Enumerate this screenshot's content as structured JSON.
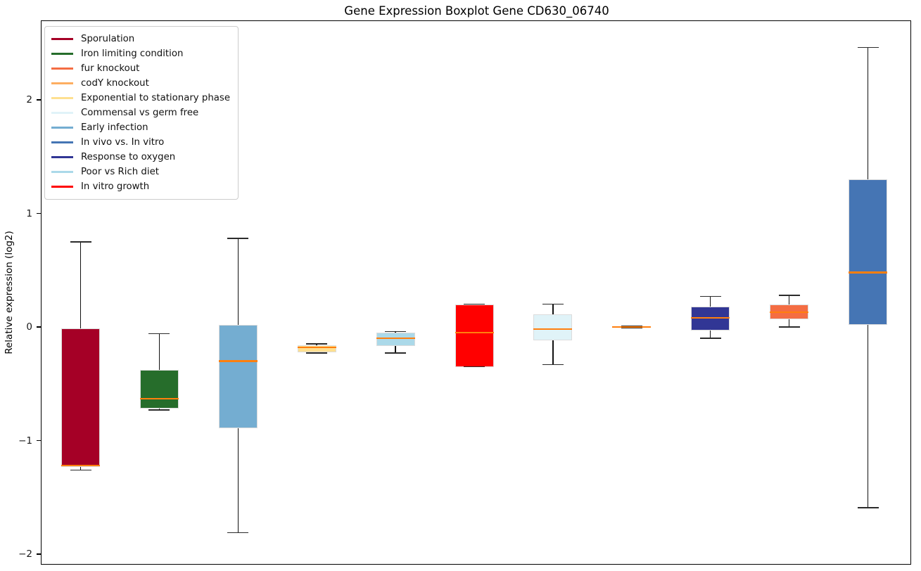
{
  "figure": {
    "title": "Gene Expression Boxplot Gene CD630_06740",
    "ylabel": "Relative expression (log2)"
  },
  "axes": {
    "yticks": [
      {
        "value": 2,
        "label": "2"
      },
      {
        "value": 1,
        "label": "1"
      },
      {
        "value": 0,
        "label": "0"
      },
      {
        "value": -1,
        "label": "−1"
      },
      {
        "value": -2,
        "label": "−2"
      }
    ]
  },
  "colors": {
    "median_line": "#ff7f0e",
    "box_edge": "#dcdcdc",
    "whisker": "#111111",
    "spine": "#000000"
  },
  "legend": {
    "items": [
      {
        "label": "Sporulation",
        "color": "#a50026"
      },
      {
        "label": "Iron limiting condition",
        "color": "#266d2b"
      },
      {
        "label": "fur knockout",
        "color": "#f46d43"
      },
      {
        "label": "codY knockout",
        "color": "#fdae61"
      },
      {
        "label": "Exponential to stationary phase",
        "color": "#fee090"
      },
      {
        "label": "Commensal vs germ free",
        "color": "#e0f3f8"
      },
      {
        "label": "Early infection",
        "color": "#74add1"
      },
      {
        "label": "In vivo vs. In vitro",
        "color": "#4575b4"
      },
      {
        "label": "Response to oxygen",
        "color": "#313695"
      },
      {
        "label": "Poor vs Rich diet",
        "color": "#abd9e9"
      },
      {
        "label": "In vitro growth",
        "color": "#ff0000"
      }
    ]
  },
  "chart_data": {
    "type": "boxplot",
    "title": "Gene Expression Boxplot Gene CD630_06740",
    "xlabel": "",
    "ylabel": "Relative expression (log2)",
    "ylim": [
      -2.09,
      2.69
    ],
    "yticks": [
      2,
      1,
      0,
      -1,
      -2
    ],
    "grid": false,
    "legend_position": "upper left",
    "x_tick_labels": [],
    "series": [
      {
        "name": "Sporulation",
        "color": "#a50026",
        "whisker_low": -1.26,
        "q1": -1.23,
        "median": -1.22,
        "q3": -0.01,
        "whisker_high": 0.75
      },
      {
        "name": "Iron limiting condition",
        "color": "#266d2b",
        "whisker_low": -0.73,
        "q1": -0.72,
        "median": -0.63,
        "q3": -0.38,
        "whisker_high": -0.06
      },
      {
        "name": "Early infection",
        "color": "#74add1",
        "whisker_low": -1.81,
        "q1": -0.89,
        "median": -0.3,
        "q3": 0.02,
        "whisker_high": 0.78
      },
      {
        "name": "Exponential to stationary phase",
        "color": "#fee090",
        "whisker_low": -0.23,
        "q1": -0.22,
        "median": -0.18,
        "q3": -0.16,
        "whisker_high": -0.15
      },
      {
        "name": "Poor vs Rich diet",
        "color": "#abd9e9",
        "whisker_low": -0.23,
        "q1": -0.17,
        "median": -0.1,
        "q3": -0.05,
        "whisker_high": -0.04
      },
      {
        "name": "In vitro growth",
        "color": "#ff0000",
        "whisker_low": -0.35,
        "q1": -0.35,
        "median": -0.05,
        "q3": 0.2,
        "whisker_high": 0.2
      },
      {
        "name": "Commensal vs germ free",
        "color": "#e0f3f8",
        "whisker_low": -0.33,
        "q1": -0.12,
        "median": -0.02,
        "q3": 0.11,
        "whisker_high": 0.2
      },
      {
        "name": "codY knockout",
        "color": "#fdae61",
        "whisker_low": -0.01,
        "q1": -0.005,
        "median": 0.0,
        "q3": 0.005,
        "whisker_high": 0.01
      },
      {
        "name": "Response to oxygen",
        "color": "#313695",
        "whisker_low": -0.1,
        "q1": -0.03,
        "median": 0.08,
        "q3": 0.18,
        "whisker_high": 0.27
      },
      {
        "name": "fur knockout",
        "color": "#f46d43",
        "whisker_low": 0.0,
        "q1": 0.07,
        "median": 0.13,
        "q3": 0.2,
        "whisker_high": 0.28
      },
      {
        "name": "In vivo vs. In vitro",
        "color": "#4575b4",
        "whisker_low": -1.59,
        "q1": 0.02,
        "median": 0.48,
        "q3": 1.3,
        "whisker_high": 2.46
      }
    ]
  }
}
